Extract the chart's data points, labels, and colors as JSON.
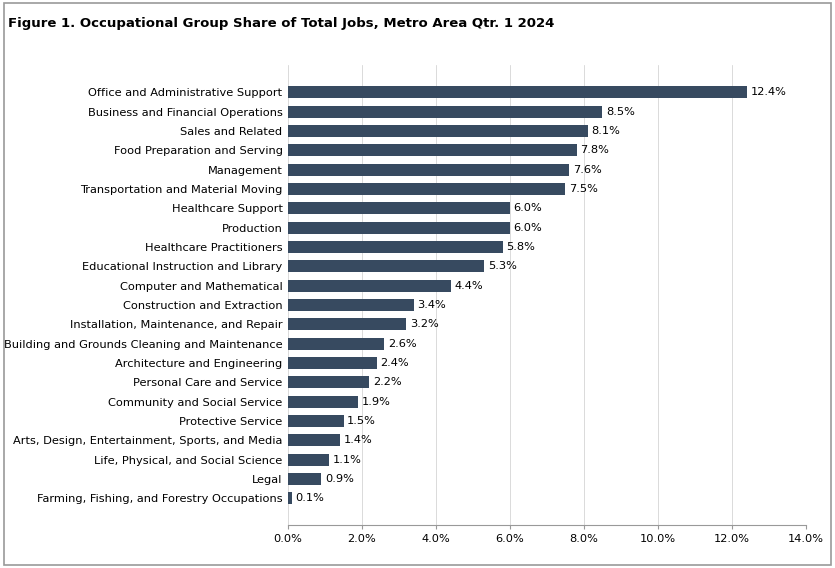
{
  "title": "Figure 1. Occupational Group Share of Total Jobs, Metro Area Qtr. 1 2024",
  "categories": [
    "Farming, Fishing, and Forestry Occupations",
    "Legal",
    "Life, Physical, and Social Science",
    "Arts, Design, Entertainment, Sports, and Media",
    "Protective Service",
    "Community and Social Service",
    "Personal Care and Service",
    "Architecture and Engineering",
    "Building and Grounds Cleaning and Maintenance",
    "Installation, Maintenance, and Repair",
    "Construction and Extraction",
    "Computer and Mathematical",
    "Educational Instruction and Library",
    "Healthcare Practitioners",
    "Production",
    "Healthcare Support",
    "Transportation and Material Moving",
    "Management",
    "Food Preparation and Serving",
    "Sales and Related",
    "Business and Financial Operations",
    "Office and Administrative Support"
  ],
  "values": [
    0.1,
    0.9,
    1.1,
    1.4,
    1.5,
    1.9,
    2.2,
    2.4,
    2.6,
    3.2,
    3.4,
    4.4,
    5.3,
    5.8,
    6.0,
    6.0,
    7.5,
    7.6,
    7.8,
    8.1,
    8.5,
    12.4
  ],
  "bar_color": "#374a60",
  "label_color": "#000000",
  "background_color": "#ffffff",
  "xlim": [
    0,
    14.0
  ],
  "xticks": [
    0,
    2,
    4,
    6,
    8,
    10,
    12,
    14
  ],
  "xtick_labels": [
    "0.0%",
    "2.0%",
    "4.0%",
    "6.0%",
    "8.0%",
    "10.0%",
    "12.0%",
    "14.0%"
  ],
  "title_fontsize": 9.5,
  "label_fontsize": 8.2,
  "value_fontsize": 8.2,
  "tick_fontsize": 8.2,
  "bar_height": 0.62
}
